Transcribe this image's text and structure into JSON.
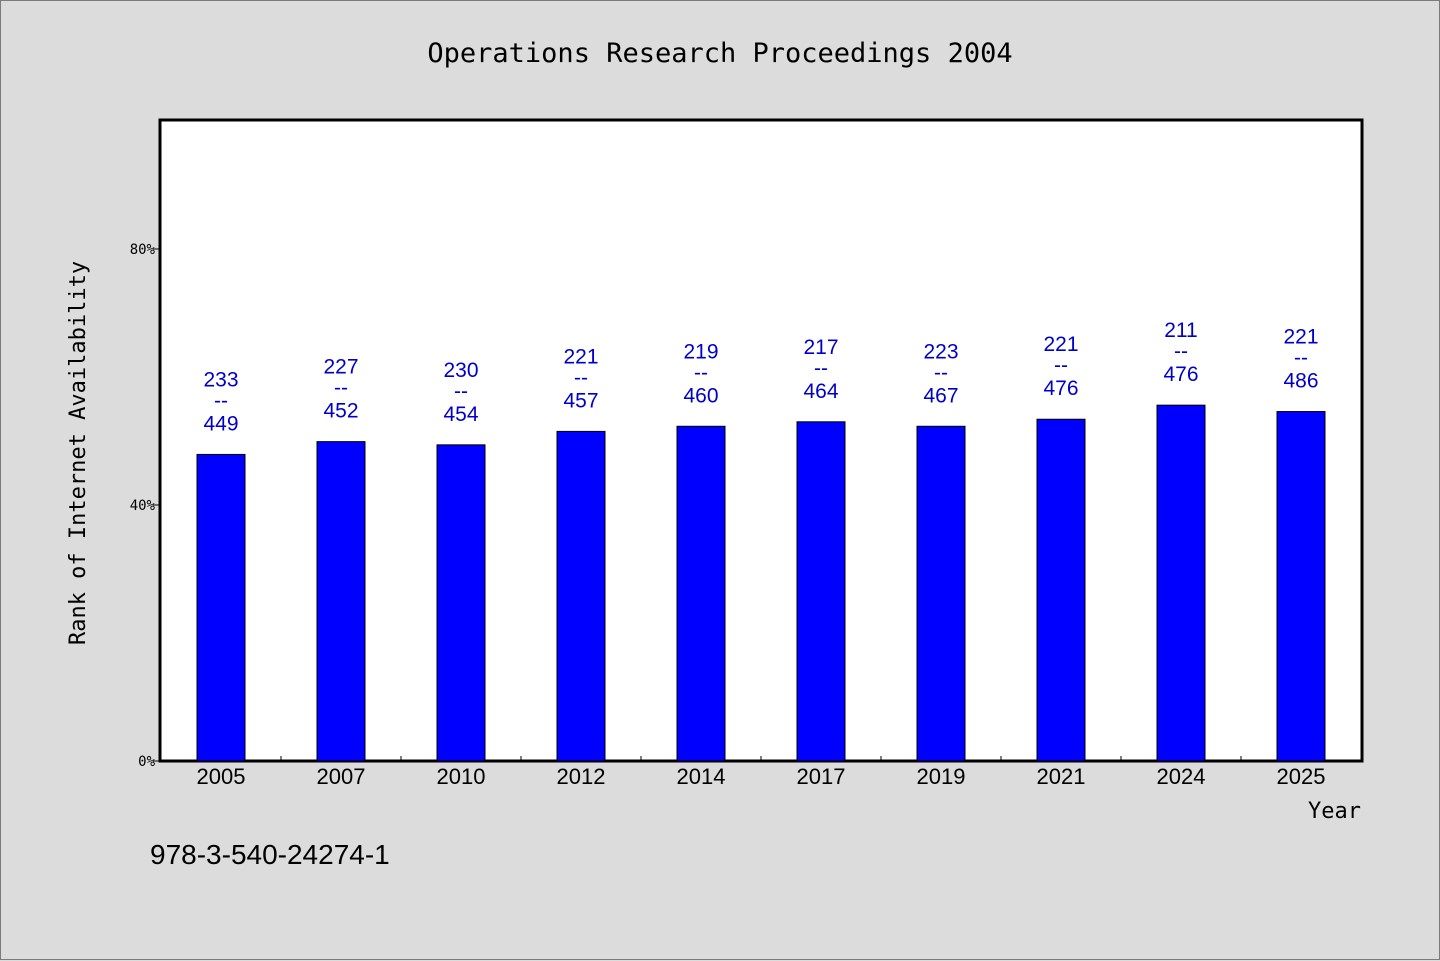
{
  "chart_data": {
    "type": "bar",
    "title": "Operations Research Proceedings 2004",
    "xlabel": "Year",
    "ylabel": "Rank of Internet Availability",
    "ylim": [
      0,
      100
    ],
    "yticks": [
      {
        "value": 0,
        "label": "0%"
      },
      {
        "value": 40,
        "label": "40%"
      },
      {
        "value": 80,
        "label": "80%"
      }
    ],
    "categories": [
      "2005",
      "2007",
      "2010",
      "2012",
      "2014",
      "2017",
      "2019",
      "2021",
      "2024",
      "2025"
    ],
    "values": [
      47.9,
      49.9,
      49.4,
      51.5,
      52.3,
      53.0,
      52.3,
      53.4,
      55.6,
      54.6
    ],
    "numerators": [
      "233",
      "227",
      "230",
      "221",
      "219",
      "217",
      "223",
      "221",
      "211",
      "221"
    ],
    "denominators": [
      "449",
      "452",
      "454",
      "457",
      "460",
      "464",
      "467",
      "476",
      "476",
      "486"
    ],
    "label_separator": "--",
    "bar_color": "#0000ff",
    "label_color": "#0000cc",
    "grid": false,
    "legend": "none"
  },
  "footer": {
    "isbn": "978-3-540-24274-1"
  }
}
